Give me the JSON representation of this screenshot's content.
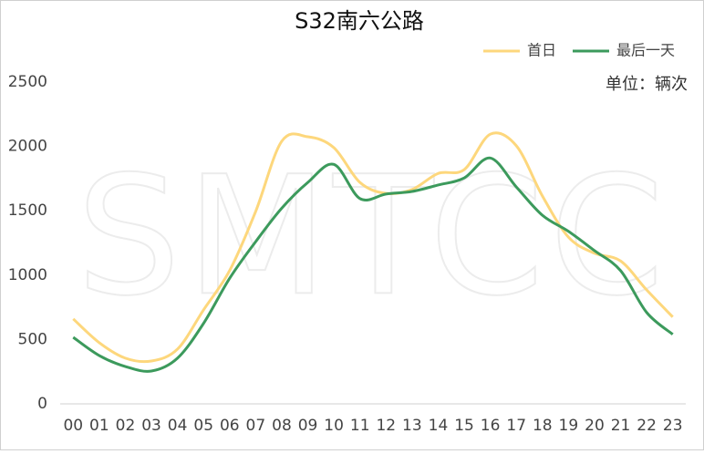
{
  "chart_data": {
    "type": "line",
    "title": "S32南六公路",
    "annotation": "单位：辆次",
    "watermark": "SMTCC",
    "categories": [
      "00",
      "01",
      "02",
      "03",
      "04",
      "05",
      "06",
      "07",
      "08",
      "09",
      "10",
      "11",
      "12",
      "13",
      "14",
      "15",
      "16",
      "17",
      "18",
      "19",
      "20",
      "21",
      "22",
      "23"
    ],
    "series": [
      {
        "name": "首日",
        "color": "#fdd77c",
        "values": [
          660,
          475,
          355,
          333,
          425,
          730,
          1035,
          1495,
          2040,
          2075,
          1990,
          1720,
          1635,
          1665,
          1790,
          1820,
          2095,
          2005,
          1615,
          1295,
          1170,
          1110,
          885,
          675
        ]
      },
      {
        "name": "最后一天",
        "color": "#3c9a5c",
        "values": [
          517,
          375,
          290,
          255,
          355,
          625,
          975,
          1260,
          1520,
          1720,
          1860,
          1595,
          1630,
          1650,
          1700,
          1755,
          1910,
          1685,
          1465,
          1340,
          1190,
          1035,
          710,
          540
        ]
      }
    ],
    "ylim": [
      0,
      2500
    ],
    "yticks": [
      0,
      500,
      1000,
      1500,
      2000,
      2500
    ],
    "grid": false,
    "legend": "top-right"
  }
}
